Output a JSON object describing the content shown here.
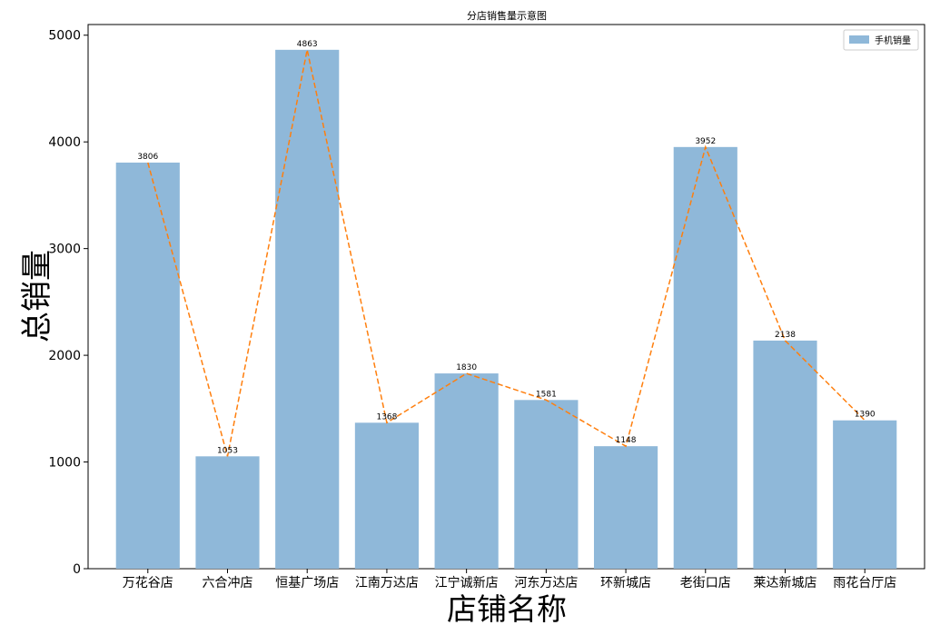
{
  "chart_data": {
    "type": "bar",
    "title": "分店销售量示意图",
    "xlabel": "店铺名称",
    "ylabel": "总销量",
    "categories": [
      "万花谷店",
      "六合冲店",
      "恒基广场店",
      "江南万达店",
      "江宁诚新店",
      "河东万达店",
      "环新城店",
      "老街口店",
      "莱达新城店",
      "雨花台厅店"
    ],
    "series": [
      {
        "name": "手机销量",
        "type": "bar",
        "values": [
          3806,
          1053,
          4863,
          1368,
          1830,
          1581,
          1148,
          3952,
          2138,
          1390
        ],
        "color": "#8fb8d9"
      }
    ],
    "overlay_line": {
      "values": [
        3806,
        1053,
        4863,
        1368,
        1830,
        1581,
        1148,
        3952,
        2138,
        1390
      ],
      "color": "#ff7f0e",
      "style": "dashed"
    },
    "data_labels": [
      "3806",
      "1053",
      "4863",
      "1368",
      "1830",
      "1581",
      "1148",
      "3952",
      "2138",
      "1390"
    ],
    "yticks": [
      0,
      1000,
      2000,
      3000,
      4000,
      5000
    ],
    "ylim": [
      0,
      5100
    ],
    "grid": false,
    "legend": {
      "position": "top-right",
      "entries": [
        "手机销量"
      ]
    }
  }
}
